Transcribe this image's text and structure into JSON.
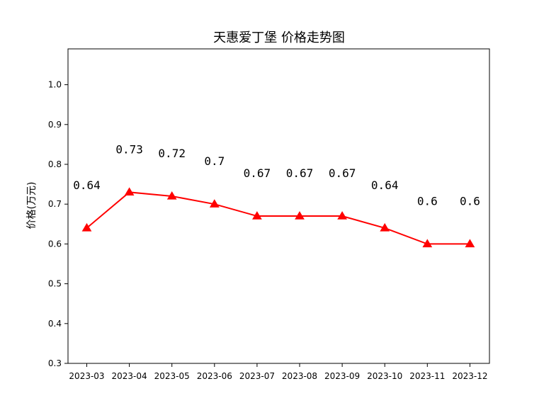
{
  "chart_data": {
    "type": "line",
    "title": "天惠爱丁堡 价格走势图",
    "xlabel": "",
    "ylabel": "价格(万元)",
    "categories": [
      "2023-03",
      "2023-04",
      "2023-05",
      "2023-06",
      "2023-07",
      "2023-08",
      "2023-09",
      "2023-10",
      "2023-11",
      "2023-12"
    ],
    "series": [
      {
        "values": [
          0.64,
          0.73,
          0.72,
          0.7,
          0.67,
          0.67,
          0.67,
          0.64,
          0.6,
          0.6
        ],
        "color": "#ff0000",
        "marker": "triangle"
      }
    ],
    "data_labels": [
      "0.64",
      "0.73",
      "0.72",
      "0.7",
      "0.67",
      "0.67",
      "0.67",
      "0.64",
      "0.6",
      "0.6"
    ],
    "ylim": [
      0.3,
      1.09
    ],
    "yticks": [
      "0.3",
      "0.4",
      "0.5",
      "0.6",
      "0.7",
      "0.8",
      "0.9",
      "1.0"
    ],
    "grid": false,
    "legend": "none"
  }
}
